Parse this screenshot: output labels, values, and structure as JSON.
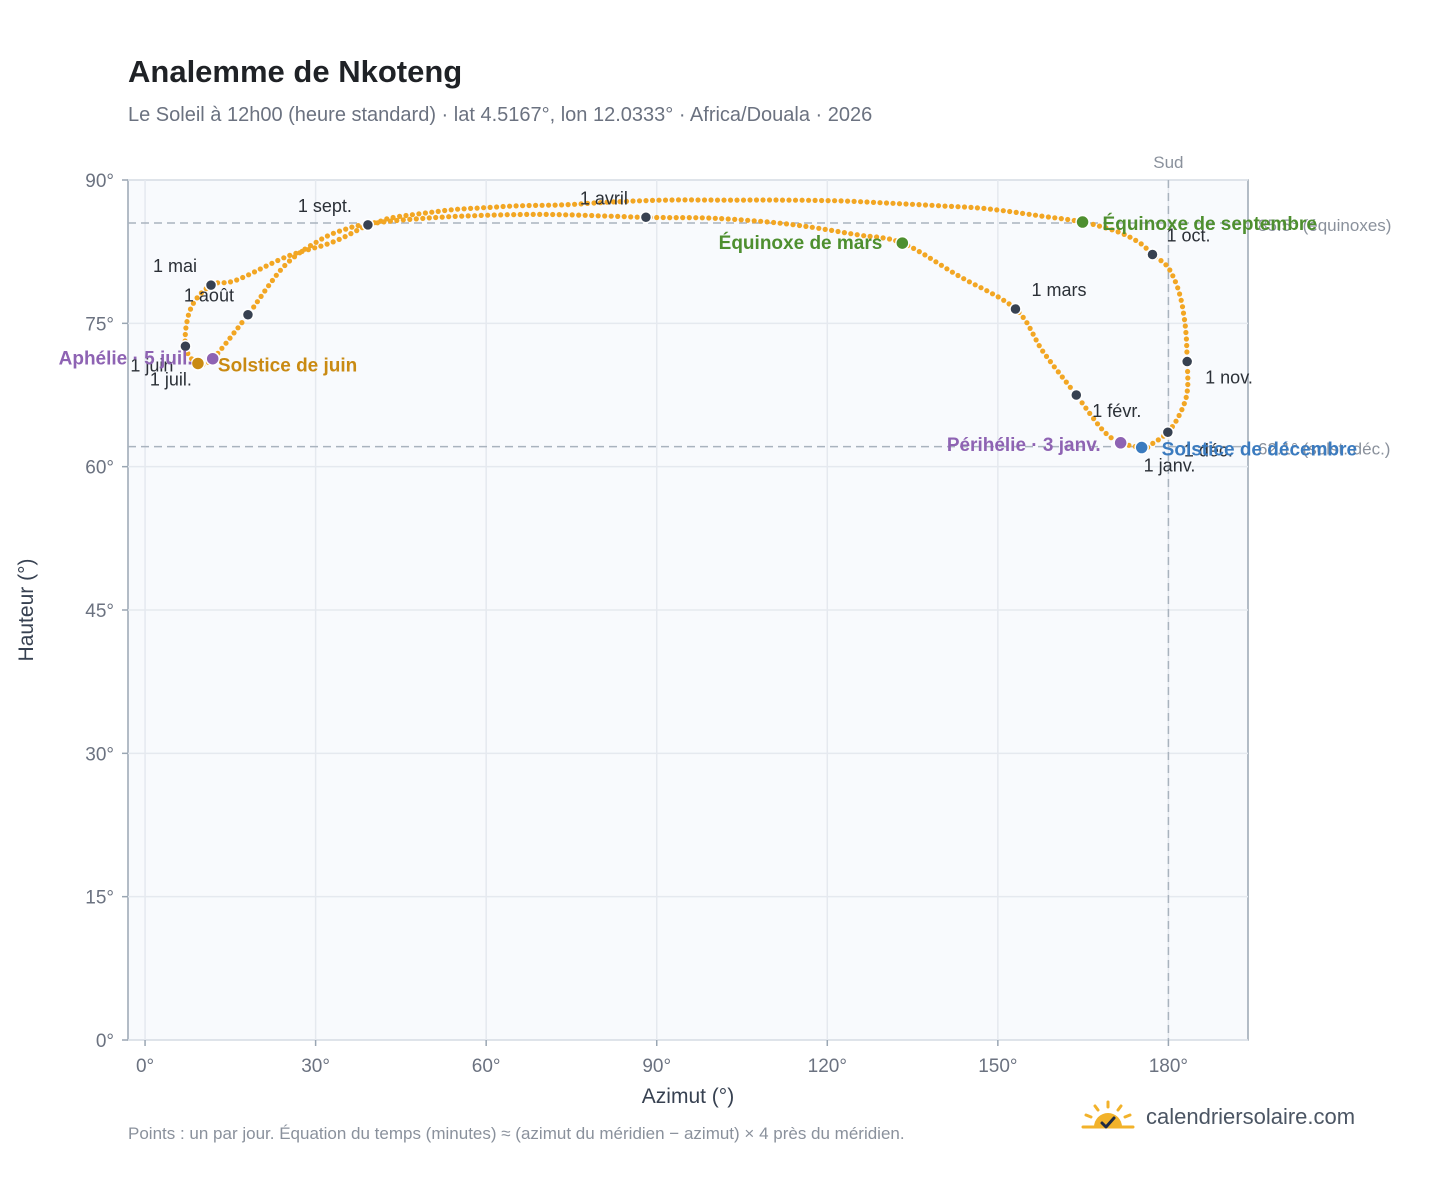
{
  "title": "Analemme de Nkoteng",
  "subtitle": "Le Soleil à 12h00 (heure standard) · lat 4.5167°, lon 12.0333° · Africa/Douala · 2026",
  "footnote": "Points : un par jour. Équation du temps (minutes) ≈ (azimut du méridien − azimut) × 4 près du méridien.",
  "brand": {
    "name": "calendriersolaire.com",
    "icon": "sun-logo-icon"
  },
  "colors": {
    "curve": "#f2a623",
    "month_marker": "#374151",
    "equinox": "#4e8f2f",
    "june_solstice": "#c98a12",
    "december_solstice": "#3b7bbf",
    "apsis": "#8e63b3",
    "plot_bg": "#f8fafd",
    "grid": "#e5e9ef",
    "reference_line": "#a9b3be"
  },
  "chart_data": {
    "type": "scatter",
    "title": "Analemme de Nkoteng",
    "xlabel": "Azimut (°)",
    "ylabel": "Hauteur (°)",
    "xlim": [
      -3,
      194
    ],
    "ylim": [
      0,
      90
    ],
    "xticks": [
      0,
      30,
      60,
      90,
      120,
      150,
      180
    ],
    "yticks": [
      0,
      15,
      30,
      45,
      60,
      75,
      90
    ],
    "tick_suffix": "°",
    "grid": true,
    "meridian": {
      "azimuth": 180,
      "label": "Sud"
    },
    "reference_lines": [
      {
        "altitude": 85.5,
        "label": "85.5° (équinoxes)"
      },
      {
        "altitude": 62.1,
        "label": "62.1° (solst. déc.)"
      }
    ],
    "path_nodes": [
      [
        175.3,
        62.0
      ],
      [
        176.0,
        61.9
      ],
      [
        177.2,
        62.4
      ],
      [
        179.9,
        63.6
      ],
      [
        182.0,
        65.5
      ],
      [
        183.3,
        67.8
      ],
      [
        183.3,
        71.0
      ],
      [
        183.0,
        74.5
      ],
      [
        182.0,
        78.0
      ],
      [
        180.0,
        80.8
      ],
      [
        177.2,
        82.2
      ],
      [
        175.0,
        83.4
      ],
      [
        171.0,
        84.6
      ],
      [
        164.9,
        85.6
      ],
      [
        158.0,
        86.2
      ],
      [
        148.0,
        87.0
      ],
      [
        139.9,
        87.3
      ],
      [
        130.0,
        87.6
      ],
      [
        122.9,
        87.8
      ],
      [
        113.0,
        87.9
      ],
      [
        102.2,
        87.9
      ],
      [
        91.4,
        87.9
      ],
      [
        82.0,
        87.7
      ],
      [
        73.6,
        87.4
      ],
      [
        65.6,
        87.3
      ],
      [
        59.7,
        87.1
      ],
      [
        54.2,
        86.9
      ],
      [
        50.1,
        86.6
      ],
      [
        46.1,
        86.3
      ],
      [
        43.0,
        86.0
      ],
      [
        41.0,
        85.6
      ],
      [
        39.2,
        85.3
      ],
      [
        33.0,
        83.5
      ],
      [
        25.0,
        82.0
      ],
      [
        16.0,
        79.5
      ],
      [
        11.6,
        79.0
      ],
      [
        8.0,
        76.5
      ],
      [
        7.1,
        72.6
      ],
      [
        9.3,
        70.8
      ],
      [
        11.9,
        71.3
      ],
      [
        18.1,
        75.9
      ],
      [
        24.5,
        81.0
      ],
      [
        31.0,
        83.8
      ],
      [
        36.0,
        85.0
      ],
      [
        39.4,
        85.4
      ],
      [
        45.0,
        85.8
      ],
      [
        55.0,
        86.2
      ],
      [
        70.0,
        86.4
      ],
      [
        88.1,
        86.1
      ],
      [
        100.0,
        86.0
      ],
      [
        113.0,
        85.4
      ],
      [
        125.0,
        84.3
      ],
      [
        133.2,
        83.4
      ],
      [
        143.0,
        80.0
      ],
      [
        153.1,
        76.5
      ],
      [
        158.0,
        72.0
      ],
      [
        163.8,
        67.5
      ],
      [
        168.5,
        63.8
      ],
      [
        171.6,
        62.5
      ],
      [
        175.3,
        62.0
      ]
    ],
    "month_markers": [
      {
        "label": "1 janv.",
        "az": 175.3,
        "alt": 62.0,
        "anchor": "start",
        "dx": 2,
        "dy": 24
      },
      {
        "label": "1 févr.",
        "az": 163.8,
        "alt": 67.5,
        "anchor": "start",
        "dx": 16,
        "dy": 22
      },
      {
        "label": "1 mars",
        "az": 153.1,
        "alt": 76.5,
        "anchor": "start",
        "dx": 16,
        "dy": -13
      },
      {
        "label": "1 avril",
        "az": 88.1,
        "alt": 86.1,
        "anchor": "middle",
        "dx": -42,
        "dy": -13
      },
      {
        "label": "1 mai",
        "az": 11.6,
        "alt": 79.0,
        "anchor": "end",
        "dx": -14,
        "dy": -13
      },
      {
        "label": "1 juin",
        "az": 7.1,
        "alt": 72.6,
        "anchor": "end",
        "dx": -12,
        "dy": 25
      },
      {
        "label": "1 juil.",
        "az": 9.3,
        "alt": 70.8,
        "anchor": "end",
        "dx": -6,
        "dy": 22
      },
      {
        "label": "1 août",
        "az": 18.1,
        "alt": 75.9,
        "anchor": "end",
        "dx": -14,
        "dy": -13
      },
      {
        "label": "1 sept.",
        "az": 39.2,
        "alt": 85.3,
        "anchor": "end",
        "dx": -16,
        "dy": -13
      },
      {
        "label": "1 oct.",
        "az": 177.2,
        "alt": 82.2,
        "anchor": "start",
        "dx": 14,
        "dy": -13
      },
      {
        "label": "1 nov.",
        "az": 183.3,
        "alt": 71.0,
        "anchor": "start",
        "dx": 18,
        "dy": 22
      },
      {
        "label": "1 déc.",
        "az": 179.9,
        "alt": 63.6,
        "anchor": "start",
        "dx": 16,
        "dy": 24
      }
    ],
    "events": [
      {
        "label": "Équinoxe de mars",
        "az": 133.2,
        "alt": 83.4,
        "kind": "equinox",
        "anchor": "end",
        "dx": -20,
        "dy": 6
      },
      {
        "label": "Équinoxe de septembre",
        "az": 164.9,
        "alt": 85.6,
        "kind": "equinox",
        "anchor": "start",
        "dx": 20,
        "dy": 8
      },
      {
        "label": "Solstice de juin",
        "az": 9.3,
        "alt": 70.8,
        "kind": "june_solstice",
        "anchor": "start",
        "dx": 20,
        "dy": 8
      },
      {
        "label": "Solstice de décembre",
        "az": 175.3,
        "alt": 62.0,
        "kind": "december_solstice",
        "anchor": "start",
        "dx": 20,
        "dy": 8
      },
      {
        "label": "Aphélie · 5 juil.",
        "az": 11.9,
        "alt": 71.3,
        "kind": "apsis",
        "anchor": "end",
        "dx": -20,
        "dy": 6
      },
      {
        "label": "Périhélie · 3 janv.",
        "az": 171.6,
        "alt": 62.5,
        "kind": "apsis",
        "anchor": "end",
        "dx": -20,
        "dy": 8
      }
    ]
  }
}
